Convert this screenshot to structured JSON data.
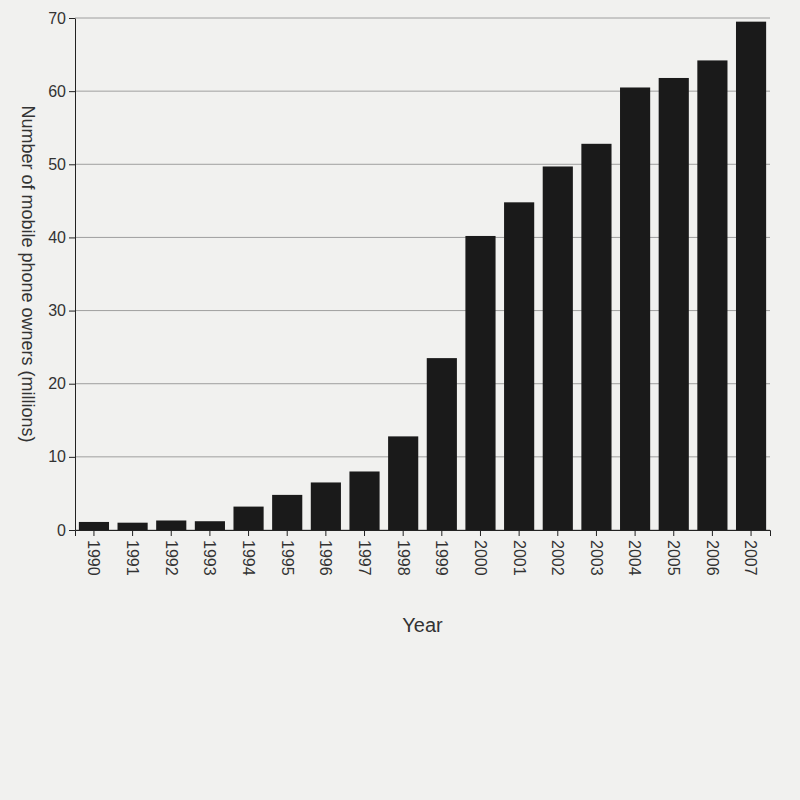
{
  "chart_data": {
    "type": "bar",
    "x_label": "Year",
    "y_label": "Number of mobile phone owners (millions)",
    "categories": [
      "1990",
      "1991",
      "1992",
      "1993",
      "1994",
      "1995",
      "1996",
      "1997",
      "1998",
      "1999",
      "2000",
      "2001",
      "2002",
      "2003",
      "2004",
      "2005",
      "2006",
      "2007"
    ],
    "values": [
      1.1,
      1.0,
      1.3,
      1.2,
      3.2,
      4.8,
      6.5,
      8.0,
      12.8,
      23.5,
      40.2,
      44.8,
      49.7,
      52.8,
      60.5,
      61.8,
      64.2,
      69.5
    ],
    "color": "#1a1a1a",
    "ylim": [
      0,
      70
    ],
    "yticks": [
      0,
      10,
      20,
      30,
      40,
      50,
      60,
      70
    ],
    "grid": true
  }
}
